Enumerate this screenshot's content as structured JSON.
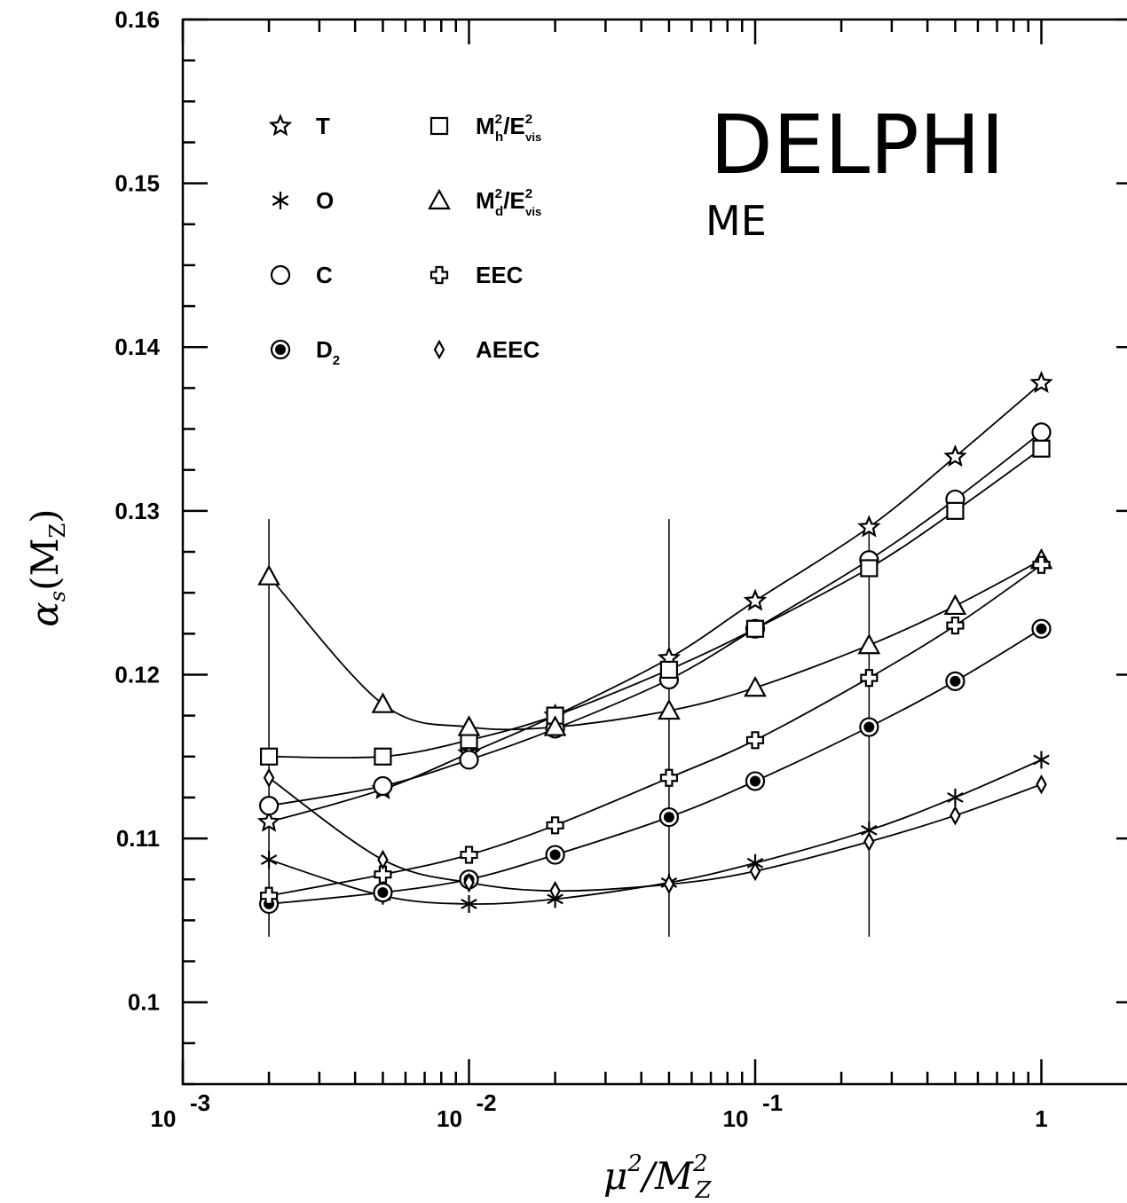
{
  "chart_data": {
    "type": "line",
    "title": "DELPHI",
    "subtitle": "ME",
    "xlabel": "μ²/M²_Z",
    "ylabel": "αs(MZ)",
    "x_scale": "log",
    "xlim": [
      0.001,
      1.3
    ],
    "ylim": [
      0.095,
      0.16
    ],
    "y_ticks": [
      "0.1",
      "0.11",
      "0.12",
      "0.13",
      "0.14",
      "0.15",
      "0.16"
    ],
    "x_ticks": [
      {
        "base": "10",
        "exp": "-3",
        "value": 0.001
      },
      {
        "base": "10",
        "exp": "-2",
        "value": 0.01
      },
      {
        "base": "10",
        "exp": "-1",
        "value": 0.1
      },
      {
        "base": "1",
        "exp": "",
        "value": 1
      }
    ],
    "legend_position": "top-left",
    "x": [
      0.002,
      0.005,
      0.01,
      0.02,
      0.05,
      0.1,
      0.25,
      0.5,
      1.0
    ],
    "series": [
      {
        "name": "T",
        "marker": "star",
        "values": [
          0.111,
          0.113,
          0.1152,
          0.1175,
          0.121,
          0.1245,
          0.129,
          0.1333,
          0.1378
        ]
      },
      {
        "name": "O",
        "marker": "asterisk",
        "values": [
          0.1087,
          0.1065,
          0.106,
          0.1063,
          0.1073,
          0.1085,
          0.1105,
          0.1125,
          0.1148
        ]
      },
      {
        "name": "C",
        "marker": "circle",
        "values": [
          0.112,
          0.1132,
          0.1148,
          0.1167,
          0.1197,
          0.1228,
          0.127,
          0.1307,
          0.1348
        ]
      },
      {
        "name": "D",
        "name_sub": "2",
        "marker": "filled-circle",
        "values": [
          0.106,
          0.1067,
          0.1075,
          0.109,
          0.1113,
          0.1135,
          0.1168,
          0.1196,
          0.1228
        ]
      },
      {
        "name": "M",
        "name_sup": "2",
        "name_sub": "h",
        "name_rest": "/E",
        "name_rest_sup": "2",
        "name_rest_sub": "vis",
        "marker": "square",
        "values": [
          0.115,
          0.115,
          0.116,
          0.1175,
          0.1203,
          0.1228,
          0.1265,
          0.13,
          0.1338
        ]
      },
      {
        "name": "M",
        "name_sup": "2",
        "name_sub": "d",
        "name_rest": "/E",
        "name_rest_sup": "2",
        "name_rest_sub": "vis",
        "marker": "triangle",
        "values": [
          0.126,
          0.1182,
          0.1168,
          0.1168,
          0.1178,
          0.1192,
          0.1218,
          0.1242,
          0.127
        ]
      },
      {
        "name": "EEC",
        "marker": "cross",
        "values": [
          0.1065,
          0.1078,
          0.109,
          0.1108,
          0.1137,
          0.116,
          0.1198,
          0.123,
          0.1267
        ]
      },
      {
        "name": "AEEC",
        "marker": "diamond",
        "values": [
          0.1137,
          0.1087,
          0.1073,
          0.1068,
          0.1072,
          0.108,
          0.1098,
          0.1114,
          0.1133
        ]
      }
    ]
  }
}
